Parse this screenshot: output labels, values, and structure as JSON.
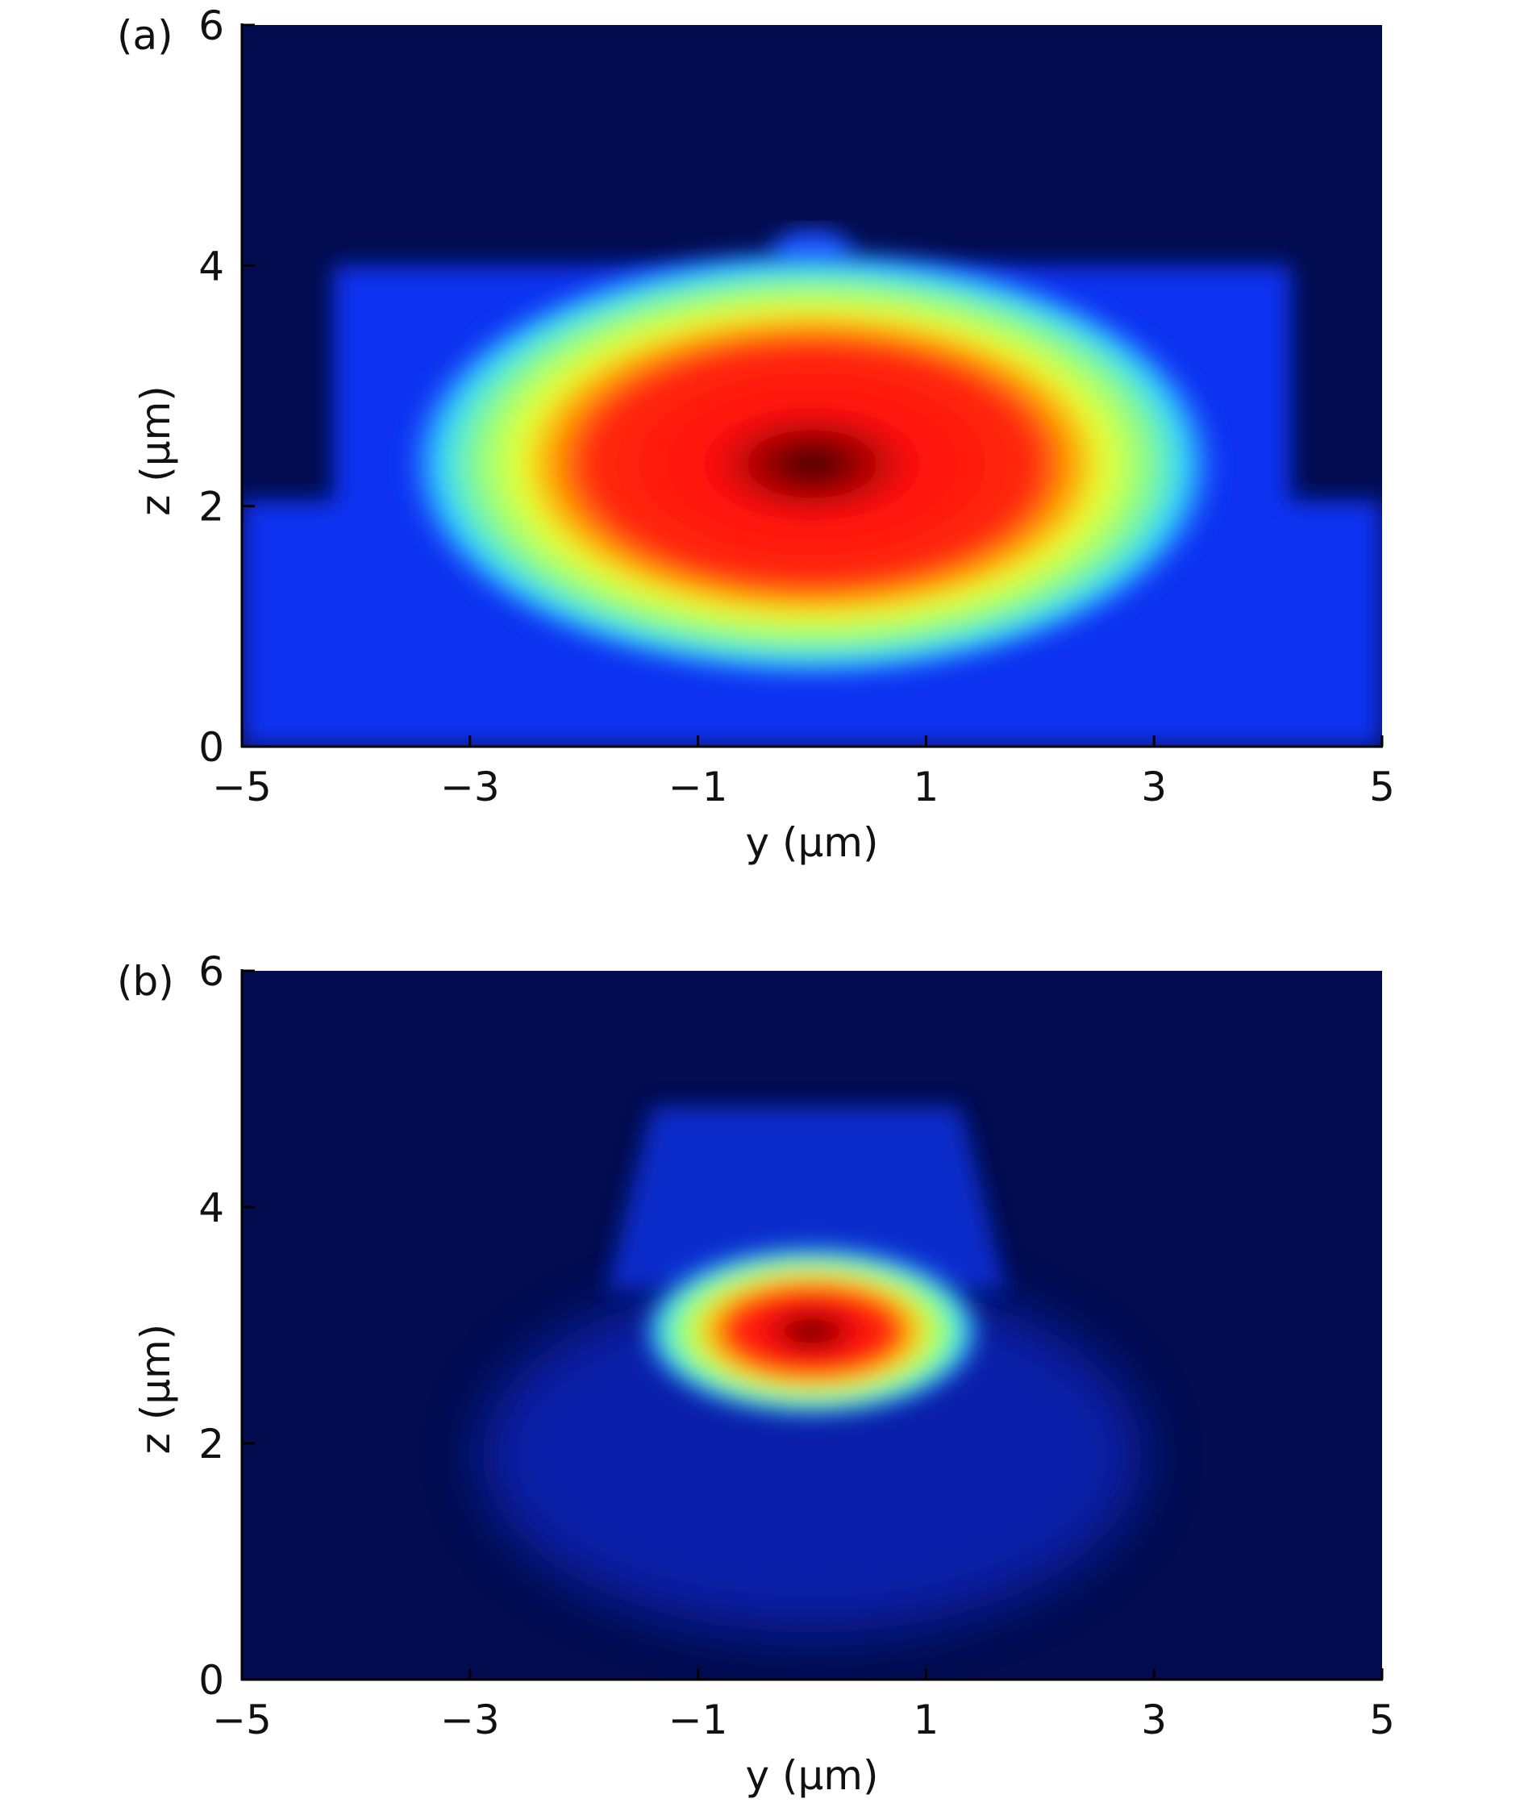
{
  "chart_data": [
    {
      "type": "heatmap",
      "panel_label": "(a)",
      "xlabel": "y (μm)",
      "ylabel": "z (μm)",
      "xlim": [
        -5,
        5
      ],
      "ylim": [
        0,
        6
      ],
      "xticks": [
        {
          "value": -5,
          "label": "−5"
        },
        {
          "value": -3,
          "label": "−3"
        },
        {
          "value": -1,
          "label": "−1"
        },
        1,
        3,
        5
      ],
      "yticks": [
        0,
        2,
        4,
        6
      ]
    },
    {
      "type": "heatmap",
      "panel_label": "(b)",
      "xlabel": "y (μm)",
      "ylabel": "z (μm)",
      "xlim": [
        -5,
        5
      ],
      "ylim": [
        0,
        6
      ],
      "xticks": [
        {
          "value": -5,
          "label": "−5"
        },
        {
          "value": -3,
          "label": "−3"
        },
        {
          "value": -1,
          "label": "−1"
        },
        1,
        3,
        5
      ],
      "yticks": [
        0,
        2,
        4,
        6
      ]
    }
  ]
}
